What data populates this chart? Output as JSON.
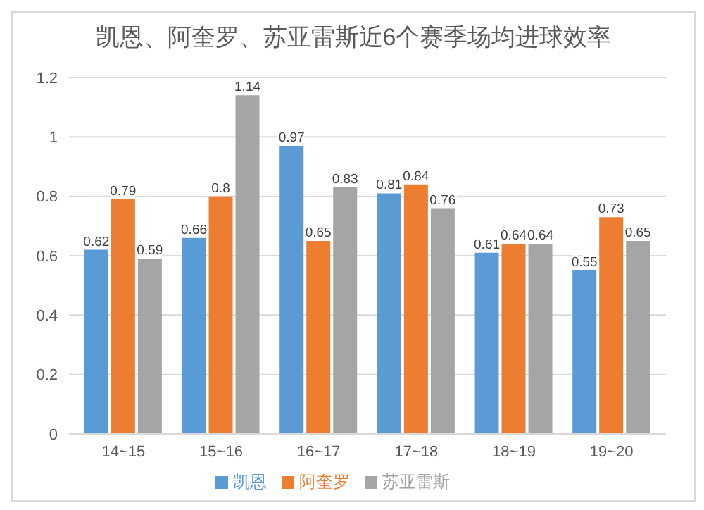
{
  "chart_data": {
    "type": "bar",
    "title": "凯恩、阿奎罗、苏亚雷斯近6个赛季场均进球效率",
    "categories": [
      "14~15",
      "15~16",
      "16~17",
      "17~18",
      "18~19",
      "19~20"
    ],
    "series": [
      {
        "name": "凯恩",
        "color": "#5b9bd5",
        "values": [
          0.62,
          0.66,
          0.97,
          0.81,
          0.61,
          0.55
        ]
      },
      {
        "name": "阿奎罗",
        "color": "#ed7d31",
        "values": [
          0.79,
          0.8,
          0.65,
          0.84,
          0.64,
          0.73
        ]
      },
      {
        "name": "苏亚雷斯",
        "color": "#a5a5a5",
        "values": [
          0.59,
          1.14,
          0.83,
          0.76,
          0.64,
          0.65
        ]
      }
    ],
    "ylim": [
      0,
      1.2
    ],
    "yticks": [
      0,
      0.2,
      0.4,
      0.6,
      0.8,
      1,
      1.2
    ],
    "grid": "y",
    "legend": "bottom",
    "data_labels": true
  }
}
